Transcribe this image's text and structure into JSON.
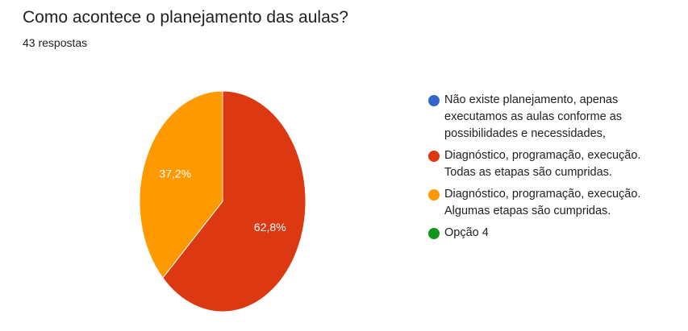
{
  "header": {
    "title": "Como acontece o planejamento das aulas?",
    "subtitle": "43 respostas"
  },
  "chart_data": {
    "type": "pie",
    "title": "Como acontece o planejamento das aulas?",
    "subtitle": "43 respostas",
    "legend_position": "right",
    "slices": [
      {
        "label": "Não existe planejamento, apenas executamos as aulas conforme as possibilidades e necessidades,",
        "value": 0,
        "display": "",
        "color": "#3366cc"
      },
      {
        "label": "Diagnóstico, programação, execução. Todas as etapas são cumpridas.",
        "value": 62.8,
        "display": "62,8%",
        "color": "#dc3912"
      },
      {
        "label": "Diagnóstico, programação, execução. Algumas etapas são cumpridas.",
        "value": 37.2,
        "display": "37,2%",
        "color": "#ff9900"
      },
      {
        "label": "Opção 4",
        "value": 0,
        "display": "",
        "color": "#109618"
      }
    ]
  }
}
